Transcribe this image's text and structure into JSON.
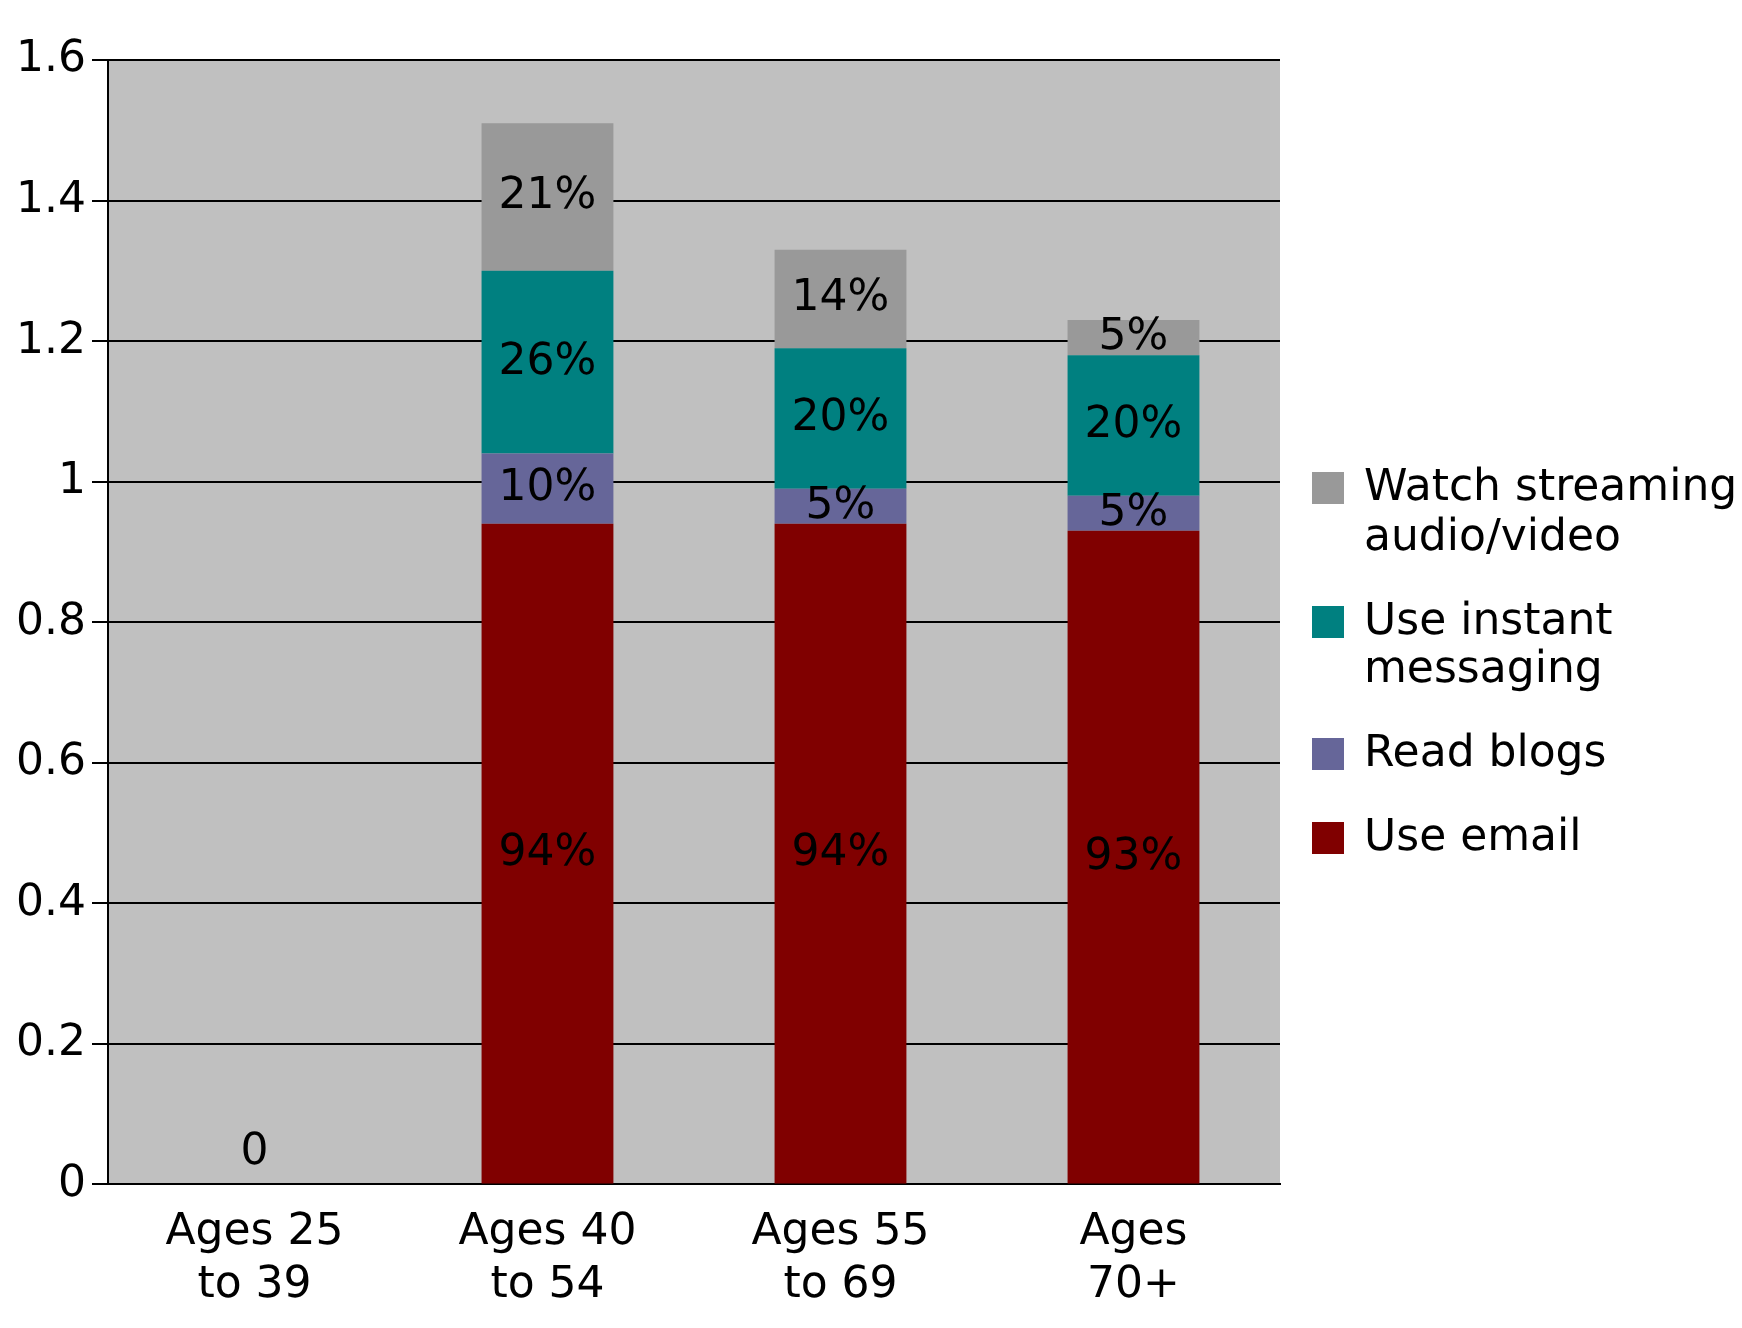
{
  "chart_data": {
    "type": "bar",
    "stacked": true,
    "categories": [
      "Ages 25 to 39",
      "Ages 40 to 54",
      "Ages 55 to 69",
      "Ages 70+"
    ],
    "series": [
      {
        "name": "Use email",
        "color": "#800000",
        "values": [
          0,
          0.94,
          0.94,
          0.93
        ],
        "value_labels": [
          "0",
          "94%",
          "94%",
          "93%"
        ]
      },
      {
        "name": "Read blogs",
        "color": "#666699",
        "values": [
          0,
          0.1,
          0.05,
          0.05
        ],
        "value_labels": [
          null,
          "10%",
          "5%",
          "5%"
        ]
      },
      {
        "name": "Use instant messaging",
        "color": "#008080",
        "values": [
          0,
          0.26,
          0.2,
          0.2
        ],
        "value_labels": [
          null,
          "26%",
          "20%",
          "20%"
        ]
      },
      {
        "name": "Watch streaming audio/video",
        "color": "#999999",
        "values": [
          0,
          0.21,
          0.14,
          0.05
        ],
        "value_labels": [
          null,
          "21%",
          "14%",
          "5%"
        ]
      }
    ],
    "ylim": [
      0,
      1.6
    ],
    "yticks": [
      0,
      0.2,
      0.4,
      0.6,
      0.8,
      1,
      1.2,
      1.4,
      1.6
    ],
    "grid": "y",
    "legend": "right"
  }
}
